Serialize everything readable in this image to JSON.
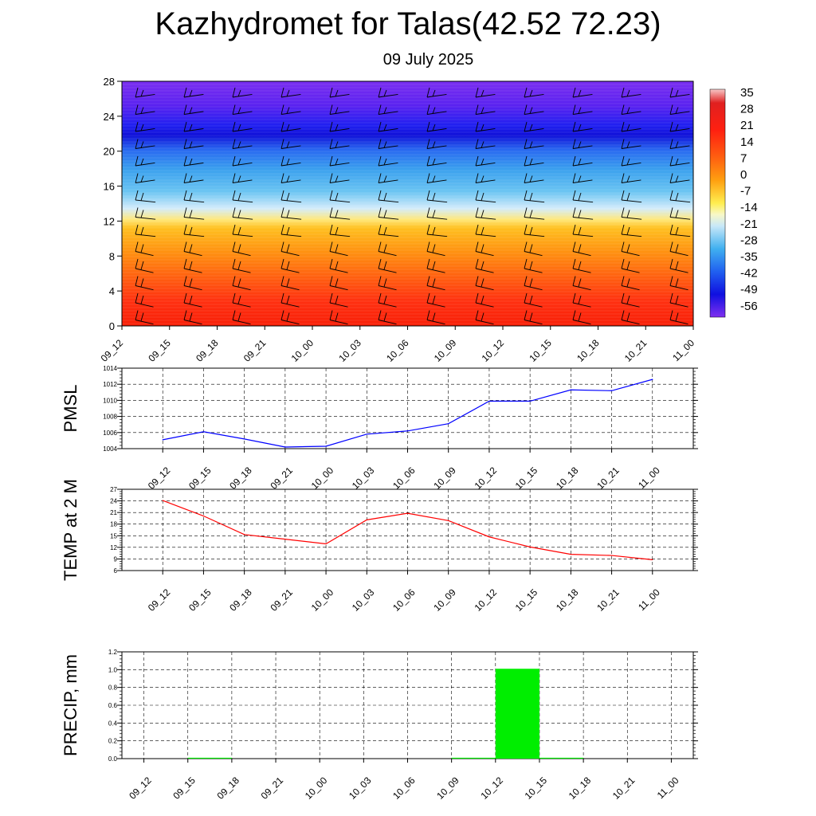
{
  "title": "Kazhydromet for Talas(42.52 72.23)",
  "subtitle": "09 July 2025",
  "colors": {
    "pmsl_line": "#0000ff",
    "temp_line": "#ff0000",
    "precip_bar": "#00ee00"
  },
  "chart_data": [
    {
      "type": "heatmap",
      "title": "",
      "ylabel": "",
      "xlabel": "",
      "y_ticks": [
        0,
        4,
        8,
        12,
        16,
        20,
        24,
        28
      ],
      "ylim": [
        0,
        28
      ],
      "x_ticks": [
        "09_12",
        "09_15",
        "09_18",
        "09_21",
        "10_00",
        "10_03",
        "10_06",
        "10_09",
        "10_12",
        "10_15",
        "10_18",
        "10_21",
        "11_00"
      ],
      "colorbar_labels": [
        "35",
        "28",
        "21",
        "14",
        "7",
        "0",
        "-7",
        "-14",
        "-21",
        "-28",
        "-35",
        "-42",
        "-49",
        "-56"
      ],
      "wind_barbs": true
    },
    {
      "type": "line",
      "ylabel": "PMSL",
      "x": [
        "09_12",
        "09_15",
        "09_18",
        "09_21",
        "10_00",
        "10_03",
        "10_06",
        "10_09",
        "10_12",
        "10_15",
        "10_18",
        "10_21",
        "11_00"
      ],
      "values": [
        1005.1,
        1006.1,
        1005.2,
        1004.2,
        1004.3,
        1005.8,
        1006.2,
        1007.1,
        1009.9,
        1009.9,
        1011.3,
        1011.2,
        1012.6
      ],
      "ylim": [
        1004,
        1014
      ],
      "y_ticks": [
        1004,
        1006,
        1008,
        1010,
        1012,
        1014
      ],
      "grid": true
    },
    {
      "type": "line",
      "ylabel": "TEMP at 2 M",
      "x": [
        "09_12",
        "09_15",
        "09_18",
        "09_21",
        "10_00",
        "10_03",
        "10_06",
        "10_09",
        "10_12",
        "10_15",
        "10_18",
        "10_21",
        "11_00"
      ],
      "values": [
        24.1,
        20.1,
        15.3,
        14.1,
        12.9,
        19.1,
        20.8,
        18.9,
        14.7,
        12.1,
        10.2,
        9.9,
        8.8
      ],
      "ylim": [
        6,
        27
      ],
      "y_ticks": [
        6,
        9,
        12,
        15,
        18,
        21,
        24,
        27
      ],
      "grid": true
    },
    {
      "type": "bar",
      "ylabel": "PRECIP, mm",
      "categories": [
        "09_12",
        "09_15",
        "09_18",
        "09_21",
        "10_00",
        "10_03",
        "10_06",
        "10_09",
        "10_12",
        "10_15",
        "10_18",
        "10_21",
        "11_00"
      ],
      "values": [
        0.0,
        0.01,
        0.0,
        0.0,
        0.0,
        0.0,
        0.0,
        0.01,
        1.01,
        0.01,
        0.0,
        0.0,
        0.0
      ],
      "ylim": [
        0,
        1.2
      ],
      "y_ticks": [
        "0.0",
        "0.2",
        "0.4",
        "0.6",
        "0.8",
        "1.0",
        "1.2"
      ],
      "grid": true
    }
  ]
}
